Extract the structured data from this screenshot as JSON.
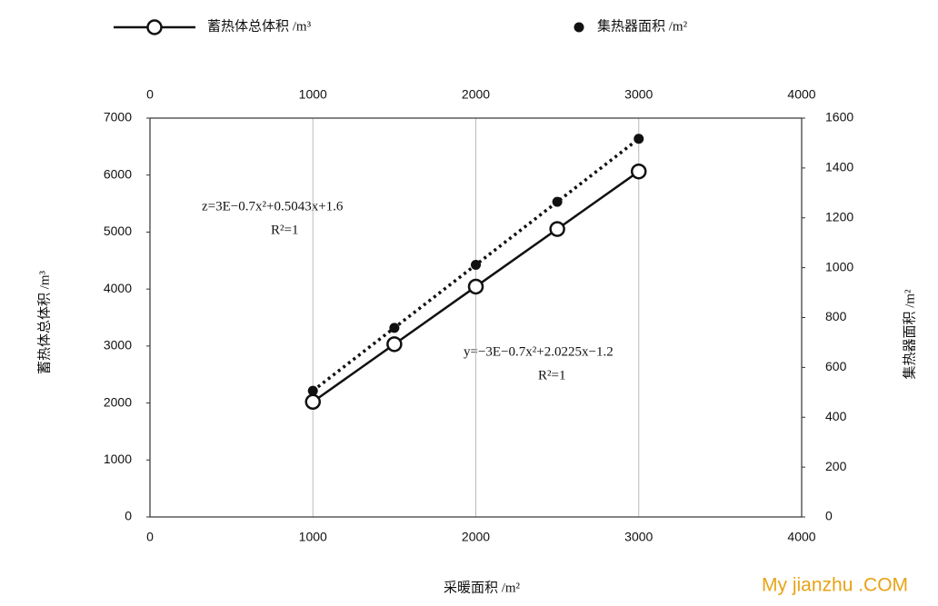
{
  "chart_data": {
    "type": "line",
    "x_label": "采暖面积 /m²",
    "y_label": "蓄热体总体积 /m³",
    "y2_label": "集热器面积 /m²",
    "x": [
      1000,
      1500,
      2000,
      2500,
      3000
    ],
    "xlim": [
      0,
      4000
    ],
    "xticks": [
      0,
      1000,
      2000,
      3000,
      4000
    ],
    "ylim": [
      0,
      7000
    ],
    "yticks": [
      0,
      1000,
      2000,
      3000,
      4000,
      5000,
      6000,
      7000
    ],
    "y2lim": [
      0,
      1600
    ],
    "y2ticks": [
      0,
      200,
      400,
      600,
      800,
      1000,
      1200,
      1400,
      1600
    ],
    "grid": "x",
    "series": [
      {
        "name": "蓄热体总体积 /m³",
        "color": "#111111",
        "line_style": "solid",
        "marker": "open",
        "values": [
          2021,
          3032,
          4043,
          5053,
          6064
        ]
      },
      {
        "name": "集热器面积 /m²",
        "color": "#111111",
        "line_style": "dotted",
        "marker": "filled",
        "axis": "y2",
        "values": [
          506.2,
          758.7,
          1011.4,
          1264.2,
          1517.2
        ]
      }
    ],
    "annotations": [
      "z=3E−0.7x²+0.5043x+1.6",
      "R²=1",
      "y=−3E−0.7x²+2.0225x−1.2",
      "R²=1"
    ],
    "watermark": "My jianzhu .COM"
  }
}
